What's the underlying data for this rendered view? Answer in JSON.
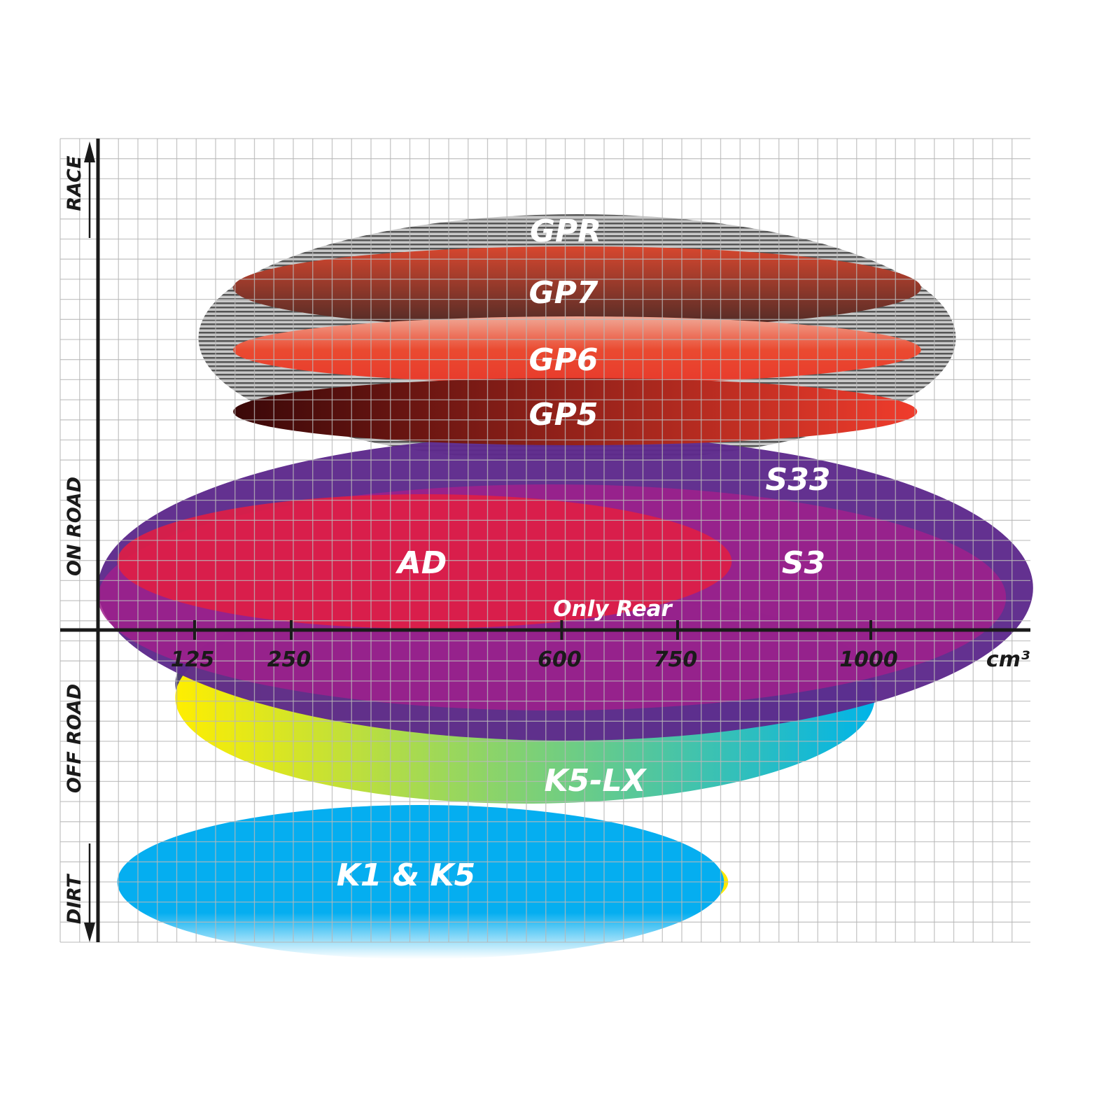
{
  "chart_data": {
    "type": "region-ellipses",
    "x_axis": {
      "unit_label": "cm³",
      "ticks": [
        125,
        250,
        600,
        750,
        1000
      ]
    },
    "y_axis": {
      "labels": [
        "RACE",
        "ON ROAD",
        "OFF ROAD",
        "DIRT"
      ]
    },
    "grid": true,
    "regions": [
      {
        "id": "gpr",
        "name": "GPR",
        "cc_range": [
          130,
          1110
        ],
        "color": "#9a9a9a",
        "level": "Race"
      },
      {
        "id": "gp7",
        "name": "GP7",
        "cc_range": [
          175,
          1065
        ],
        "color": "#8a3a2a",
        "level": "Race"
      },
      {
        "id": "gp6",
        "name": "GP6",
        "cc_range": [
          175,
          1065
        ],
        "color": "#e8432d",
        "level": "Race"
      },
      {
        "id": "gp5",
        "name": "GP5",
        "cc_range": [
          175,
          1060
        ],
        "color": "#b0281c",
        "level": "Race / On road"
      },
      {
        "id": "s33",
        "name": "S33",
        "cc_range": [
          0,
          1210
        ],
        "color": "#5e2a8c",
        "level": "On road"
      },
      {
        "id": "s3",
        "name": "S3",
        "cc_range": [
          0,
          1175
        ],
        "color": "#a0208c",
        "level": "On road"
      },
      {
        "id": "ad",
        "name": "AD",
        "cc_range": [
          25,
          820
        ],
        "color": "#e01e44",
        "level": "On road"
      },
      {
        "id": "k5lx",
        "name": "K5-LX",
        "cc_range": [
          100,
          1005
        ],
        "color": "#20b8d8",
        "level": "Off road"
      },
      {
        "id": "k1k5",
        "name": "K1 & K5",
        "cc_range": [
          25,
          810
        ],
        "color": "#0aaeee",
        "level": "Dirt"
      }
    ],
    "annotations": [
      "Only Rear"
    ]
  }
}
